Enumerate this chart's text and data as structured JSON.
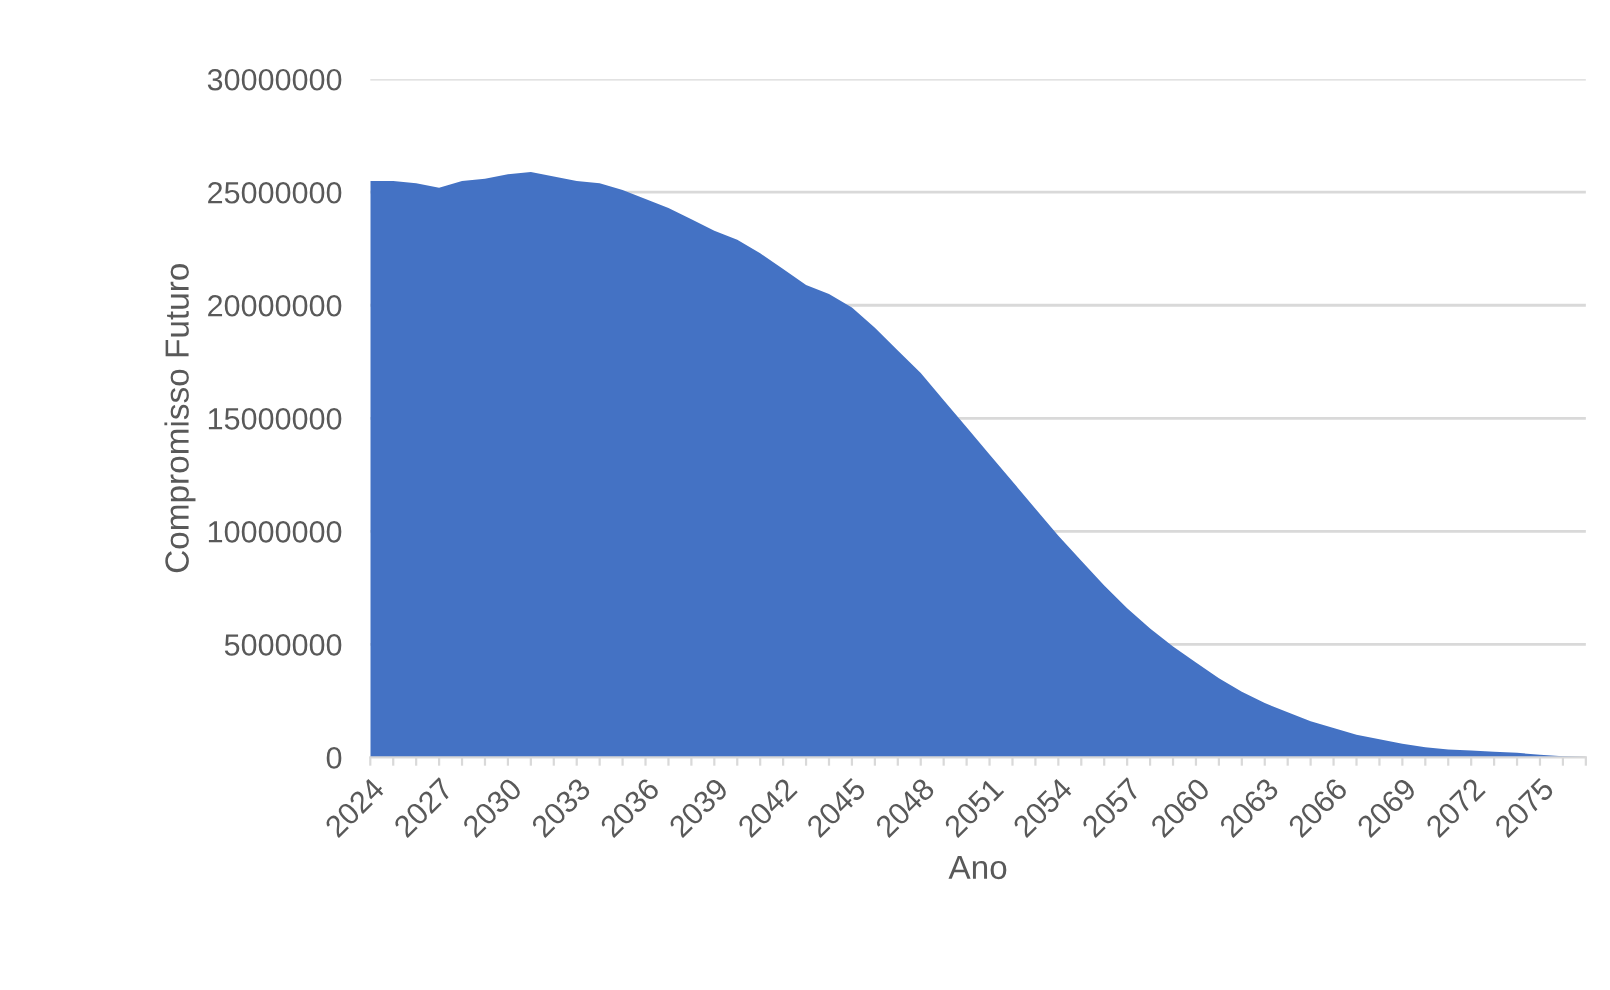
{
  "chart_data": {
    "type": "area",
    "xlabel": "Ano",
    "ylabel": "Compromisso Futuro",
    "categories": [
      "2024",
      null,
      null,
      "2027",
      null,
      null,
      "2030",
      null,
      null,
      "2033",
      null,
      null,
      "2036",
      null,
      null,
      "2039",
      null,
      null,
      "2042",
      null,
      null,
      "2045",
      null,
      null,
      "2048",
      null,
      null,
      "2051",
      null,
      null,
      "2054",
      null,
      null,
      "2057",
      null,
      null,
      "2060",
      null,
      null,
      "2063",
      null,
      null,
      "2066",
      null,
      null,
      "2069",
      null,
      null,
      "2072",
      null,
      null,
      "2075",
      null,
      null
    ],
    "series": [
      {
        "color": "#4472c4",
        "values": [
          25500000,
          25500000,
          25400000,
          25200000,
          25500000,
          25600000,
          25800000,
          25900000,
          25700000,
          25500000,
          25400000,
          25100000,
          24700000,
          24300000,
          23800000,
          23300000,
          22900000,
          22300000,
          21600000,
          20900000,
          20500000,
          19900000,
          19000000,
          18000000,
          17000000,
          15800000,
          14600000,
          13400000,
          12200000,
          11000000,
          9800000,
          8700000,
          7600000,
          6600000,
          5700000,
          4900000,
          4200000,
          3500000,
          2900000,
          2400000,
          2000000,
          1600000,
          1300000,
          1000000,
          800000,
          600000,
          450000,
          350000,
          300000,
          250000,
          200000,
          120000,
          50000,
          20000
        ]
      }
    ],
    "ylim": [
      0,
      30000000
    ],
    "yticks": [
      0,
      5000000,
      10000000,
      15000000,
      20000000,
      25000000,
      30000000
    ],
    "grid": "y",
    "legend": false
  }
}
